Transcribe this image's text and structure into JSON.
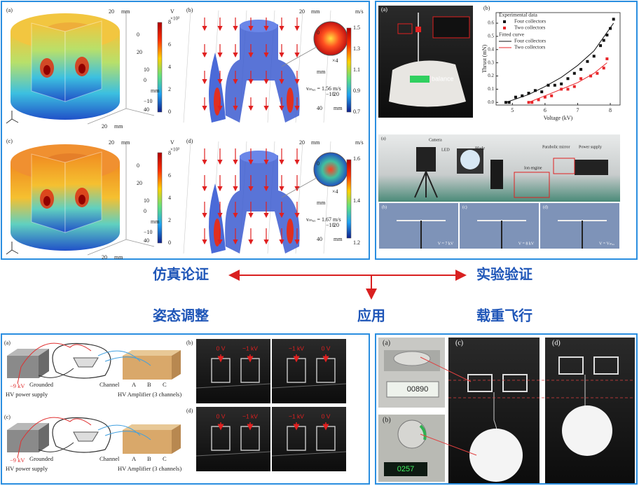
{
  "center": {
    "simulation": "仿真论证",
    "experiment": "实验验证",
    "attitude": "姿态调整",
    "application": "应用",
    "payload": "载重飞行"
  },
  "simulation": {
    "a": {
      "label": "(a)",
      "unit": "V",
      "scale": "×10³",
      "colorbar": [
        "8",
        "6",
        "4",
        "2",
        "0"
      ],
      "axes": [
        "20",
        "mm",
        "0",
        "20",
        "10",
        "0",
        "mm",
        "−10",
        "40",
        "20",
        "mm"
      ]
    },
    "b": {
      "label": "(b)",
      "unit": "m/s",
      "colorbar": [
        "1.5",
        "1.3",
        "1.1",
        "0.9",
        "0.7"
      ],
      "axes": [
        "20",
        "mm",
        "0",
        "mm",
        "−10",
        "40",
        "20",
        "mm"
      ],
      "zoom": "×4",
      "vmax": "vₘₐₓ = 1.56 m/s"
    },
    "c": {
      "label": "(c)",
      "unit": "V",
      "scale": "×10³",
      "colorbar": [
        "8",
        "6",
        "4",
        "2",
        "0"
      ],
      "axes": [
        "20",
        "mm",
        "0",
        "20",
        "10",
        "0",
        "mm",
        "−10",
        "40",
        "20",
        "mm"
      ]
    },
    "d": {
      "label": "(d)",
      "unit": "m/s",
      "colorbar": [
        "1.6",
        "1.4",
        "1.2"
      ],
      "axes": [
        "20",
        "mm",
        "0",
        "mm",
        "−10",
        "40",
        "20",
        "mm"
      ],
      "zoom": "×4",
      "vmax": "vₘₐₓ = 1.67 m/s"
    }
  },
  "experiment": {
    "photo": {
      "label": "(a)",
      "balance": "balance"
    },
    "setup": {
      "label": "(a)",
      "items": [
        "Camera",
        "LED",
        "Blade",
        "Ion engine",
        "Parabolic mirror",
        "Power supply"
      ],
      "frames": [
        {
          "label": "(b)",
          "caption": "V = 7 kV"
        },
        {
          "label": "(c)",
          "caption": "V = 8 kV"
        },
        {
          "label": "(d)",
          "caption": "V = Vₘₐₓ"
        }
      ]
    }
  },
  "chart_data": {
    "type": "scatter",
    "label": "(b)",
    "x_label": "Voltage (kV)",
    "y_label": "Thrust (mN)",
    "legend_titles": [
      "Experimental data",
      "Fitted curve"
    ],
    "xlim": [
      4.5,
      8.3
    ],
    "ylim": [
      -0.02,
      0.68
    ],
    "xticks": [
      5,
      6,
      7,
      8
    ],
    "yticks": [
      {
        "value": 0,
        "label": "0.0"
      },
      0.1,
      0.2,
      0.3,
      0.4,
      0.5,
      0.6
    ],
    "series": [
      {
        "name": "Four collectors",
        "kind": "scatter",
        "color": "#111111",
        "x": [
          4.8,
          4.9,
          5.1,
          5.3,
          5.5,
          5.7,
          5.9,
          6.1,
          6.3,
          6.5,
          6.7,
          6.9,
          7.1,
          7.3,
          7.5,
          7.7,
          7.8,
          7.9,
          8.0,
          8.1
        ],
        "values": [
          0.0,
          0.0,
          0.04,
          0.05,
          0.07,
          0.09,
          0.08,
          0.13,
          0.13,
          0.14,
          0.18,
          0.22,
          0.25,
          0.31,
          0.35,
          0.43,
          0.47,
          0.51,
          0.56,
          0.63
        ]
      },
      {
        "name": "Two collectors",
        "kind": "scatter",
        "color": "#e8262a",
        "x": [
          5.5,
          5.6,
          5.8,
          6.0,
          6.2,
          6.5,
          6.7,
          6.9,
          7.1,
          7.4,
          7.6,
          7.8,
          7.9
        ],
        "values": [
          0.0,
          0.0,
          0.02,
          0.04,
          0.05,
          0.1,
          0.1,
          0.12,
          0.18,
          0.2,
          0.22,
          0.26,
          0.33
        ]
      },
      {
        "name": "Four collectors",
        "kind": "line",
        "color": "#111111",
        "x": [
          4.8,
          5.5,
          6.0,
          6.5,
          7.0,
          7.5,
          8.1
        ],
        "values": [
          0.0,
          0.06,
          0.12,
          0.19,
          0.28,
          0.39,
          0.6
        ]
      },
      {
        "name": "Two collectors",
        "kind": "line",
        "color": "#e8262a",
        "x": [
          5.5,
          6.0,
          6.5,
          7.0,
          7.5,
          7.9
        ],
        "values": [
          0.0,
          0.05,
          0.1,
          0.15,
          0.22,
          0.3
        ]
      }
    ]
  },
  "attitude": {
    "diagrams": [
      {
        "label": "(a)",
        "voltage": "−9 kV",
        "grounded": "Grounded",
        "supply": "HV power supply",
        "channel": "Channel",
        "channels": [
          "A",
          "B",
          "C"
        ],
        "amplifier": "HV Amplifier (3 channels)"
      },
      {
        "label": "(c)",
        "voltage": "−9 kV",
        "grounded": "Grounded",
        "supply": "HV power supply",
        "channel": "Channel",
        "channels": [
          "A",
          "B",
          "C"
        ],
        "amplifier": "HV Amplifier (3 channels)"
      }
    ],
    "photos": [
      {
        "label": "(b)",
        "voltages": [
          "0 V",
          "−1 kV",
          "−1 kV",
          "0 V"
        ]
      },
      {
        "label": "(d)",
        "voltages": [
          "0 V",
          "−1 kV",
          "−1 kV",
          "0 V"
        ]
      }
    ]
  },
  "payload": {
    "labels": [
      "(a)",
      "(b)",
      "(c)",
      "(d)"
    ],
    "displays": [
      "00890",
      "0257"
    ]
  }
}
